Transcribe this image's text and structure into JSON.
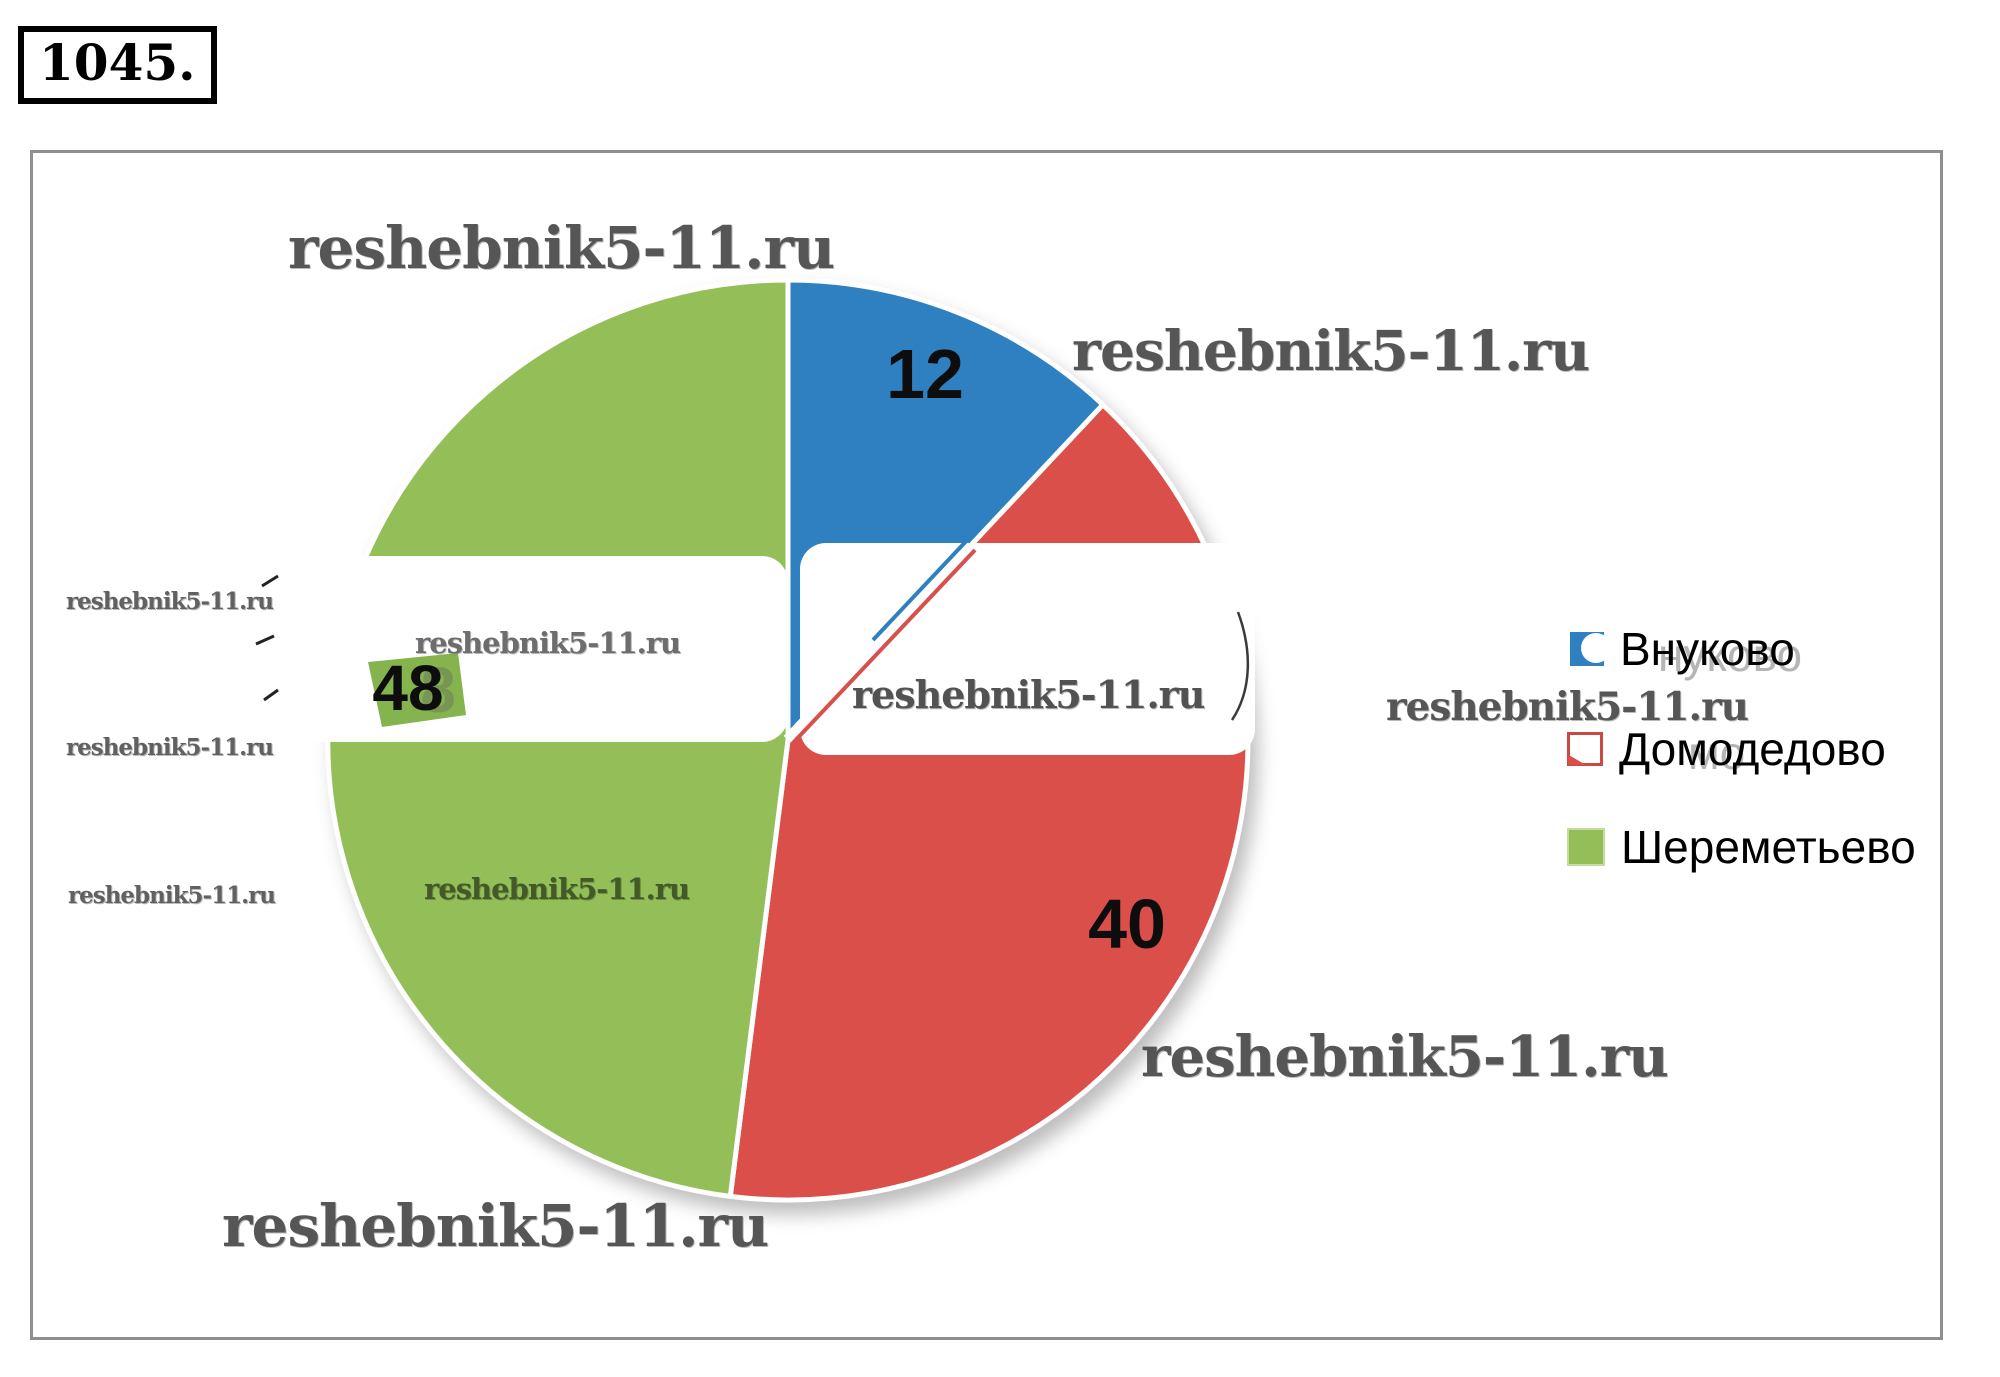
{
  "problem_number": "1045.",
  "watermark": {
    "text": "reshebnik5-11.ru"
  },
  "chart_data": {
    "type": "pie",
    "title": "",
    "categories": [
      "Внуково",
      "Домодедово",
      "Шереметьево"
    ],
    "values": [
      12,
      40,
      48
    ],
    "colors": [
      "#2F80C0",
      "#DB4F4B",
      "#93BE58"
    ],
    "legend_position": "right",
    "data_labels_shown": true,
    "start_angle_deg": 0,
    "direction": "clockwise"
  },
  "legend": {
    "items": [
      {
        "label": "Внуково",
        "color": "#2F80C0"
      },
      {
        "label": "Домодедово",
        "color": "#DB4F4B"
      },
      {
        "label": "Шереметьево",
        "color": "#93BE58"
      }
    ],
    "ghost_fragments": [
      "нуково",
      "мо"
    ]
  },
  "ghost_digit": "8"
}
